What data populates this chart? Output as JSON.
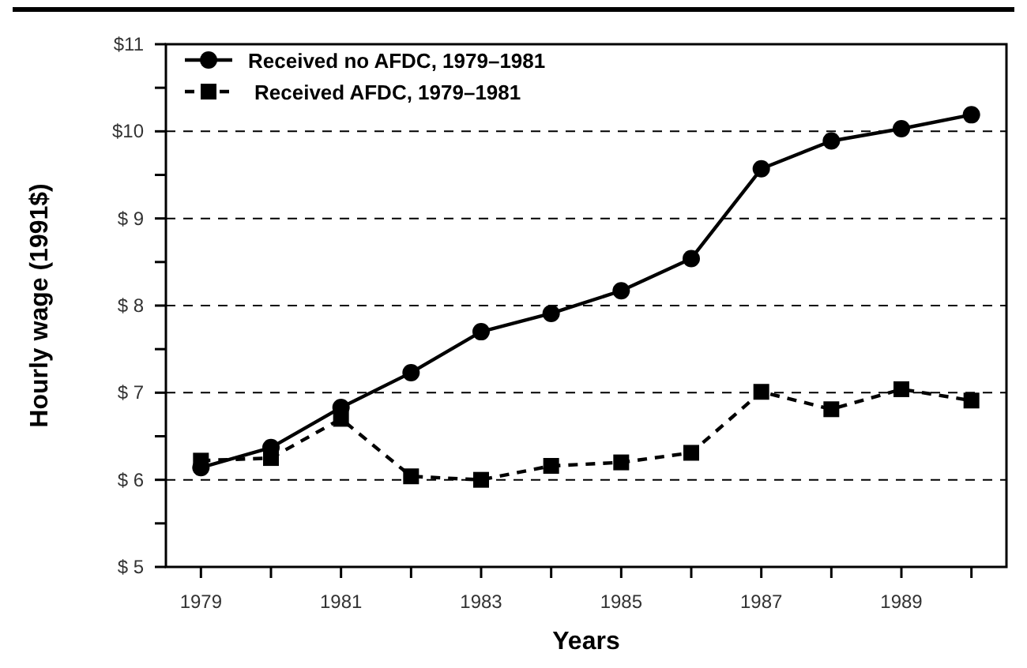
{
  "chart_data": {
    "type": "line",
    "xlabel": "Years",
    "ylabel": "Hourly wage (1991$)",
    "x": [
      1979,
      1980,
      1981,
      1982,
      1983,
      1984,
      1985,
      1986,
      1987,
      1988,
      1989,
      1990
    ],
    "series": [
      {
        "name": "Received no AFDC, 1979–1981",
        "color": "#000000",
        "marker": "circle",
        "line_style": "solid",
        "values": [
          6.14,
          6.37,
          6.83,
          7.23,
          7.7,
          7.91,
          8.17,
          8.54,
          9.57,
          9.89,
          10.03,
          10.19
        ]
      },
      {
        "name": "Received AFDC, 1979–1981",
        "color": "#000000",
        "marker": "square",
        "line_style": "dashed",
        "values": [
          6.22,
          6.25,
          6.7,
          6.04,
          6.0,
          6.16,
          6.2,
          6.31,
          7.01,
          6.81,
          7.04,
          6.91
        ]
      }
    ],
    "xlim": [
      1978.5,
      1990.5
    ],
    "xticks": [
      1979,
      {
        "value": 1980,
        "label": null
      },
      1981,
      {
        "value": 1982,
        "label": null
      },
      1983,
      {
        "value": 1984,
        "label": null
      },
      1985,
      {
        "value": 1986,
        "label": null
      },
      1987,
      {
        "value": 1988,
        "label": null
      },
      1989,
      {
        "value": 1990,
        "label": null
      }
    ],
    "ylim": [
      5,
      11
    ],
    "yticks": [
      {
        "value": 5,
        "label": "$ 5"
      },
      {
        "value": 5.5,
        "label": null
      },
      {
        "value": 6,
        "label": "$ 6"
      },
      {
        "value": 6.5,
        "label": null
      },
      {
        "value": 7,
        "label": "$ 7"
      },
      {
        "value": 7.5,
        "label": null
      },
      {
        "value": 8,
        "label": "$ 8"
      },
      {
        "value": 8.5,
        "label": null
      },
      {
        "value": 9,
        "label": "$ 9"
      },
      {
        "value": 9.5,
        "label": null
      },
      {
        "value": 10,
        "label": "$10"
      },
      {
        "value": 10.5,
        "label": null
      },
      {
        "value": 11,
        "label": "$11"
      }
    ],
    "ref_lines": [
      {
        "axis": "y",
        "value": 6,
        "line_style": "dashed",
        "color": "#000000"
      },
      {
        "axis": "y",
        "value": 7,
        "line_style": "dashed",
        "color": "#000000"
      },
      {
        "axis": "y",
        "value": 8,
        "line_style": "dashed",
        "color": "#000000"
      },
      {
        "axis": "y",
        "value": 9,
        "line_style": "dashed",
        "color": "#000000"
      },
      {
        "axis": "y",
        "value": 10,
        "line_style": "dashed",
        "color": "#000000"
      }
    ],
    "legend": "top left"
  }
}
